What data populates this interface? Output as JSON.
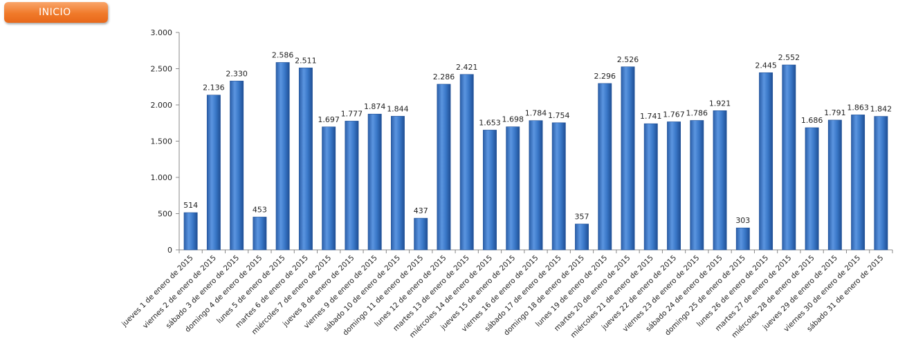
{
  "header": {
    "inicio_label": "INICIO"
  },
  "chart_data": {
    "type": "bar",
    "categories": [
      "jueves 1 de enero de 2015",
      "viernes 2 de enero de 2015",
      "sábado 3 de enero de 2015",
      "domingo 4 de enero de 2015",
      "lunes 5 de enero de 2015",
      "martes 6 de enero de 2015",
      "miércoles 7 de enero de 2015",
      "jueves 8 de enero de 2015",
      "viernes 9 de enero de 2015",
      "sábado 10 de enero de 2015",
      "domingo 11 de enero de 2015",
      "lunes 12 de enero de 2015",
      "martes 13 de enero de 2015",
      "miércoles 14 de enero de 2015",
      "jueves 15 de enero de 2015",
      "viernes 16 de enero de 2015",
      "sábado 17 de enero de 2015",
      "domingo 18 de enero de 2015",
      "lunes 19 de enero de 2015",
      "martes 20 de enero de 2015",
      "miércoles 21 de enero de 2015",
      "jueves 22 de enero de 2015",
      "viernes 23 de enero de 2015",
      "sábado 24 de enero de 2015",
      "domingo 25 de enero de 2015",
      "lunes 26 de enero de 2015",
      "martes 27 de enero de 2015",
      "miércoles 28 de enero de 2015",
      "jueves 29 de enero de 2015",
      "viernes 30 de enero de 2015",
      "sábado 31 de enero de 2015"
    ],
    "values": [
      514,
      2136,
      2330,
      453,
      2586,
      2511,
      1697,
      1777,
      1874,
      1844,
      437,
      2286,
      2421,
      1653,
      1698,
      1784,
      1754,
      357,
      2296,
      2526,
      1741,
      1767,
      1786,
      1921,
      303,
      2445,
      2552,
      1686,
      1791,
      1863,
      1842
    ],
    "value_labels": [
      "514",
      "2.136",
      "2.330",
      "453",
      "2.586",
      "2.511",
      "1.697",
      "1.777",
      "1.874",
      "1.844",
      "437",
      "2.286",
      "2.421",
      "1.653",
      "1.698",
      "1.784",
      "1.754",
      "357",
      "2.296",
      "2.526",
      "1.741",
      "1.767",
      "1.786",
      "1.921",
      "303",
      "2.445",
      "2.552",
      "1.686",
      "1.791",
      "1.863",
      "1.842"
    ],
    "y_ticks": [
      0,
      500,
      1000,
      1500,
      2000,
      2500,
      3000
    ],
    "y_tick_labels": [
      "0",
      "500",
      "1.000",
      "1.500",
      "2.000",
      "2.500",
      "3.000"
    ],
    "ylim": [
      0,
      3000
    ],
    "title": "",
    "xlabel": "",
    "ylabel": "",
    "grid": false,
    "legend": "none",
    "bar_color": "#3a78c8",
    "bar_color_dark": "#1f4f95",
    "bar_color_light": "#6fa3e6"
  }
}
